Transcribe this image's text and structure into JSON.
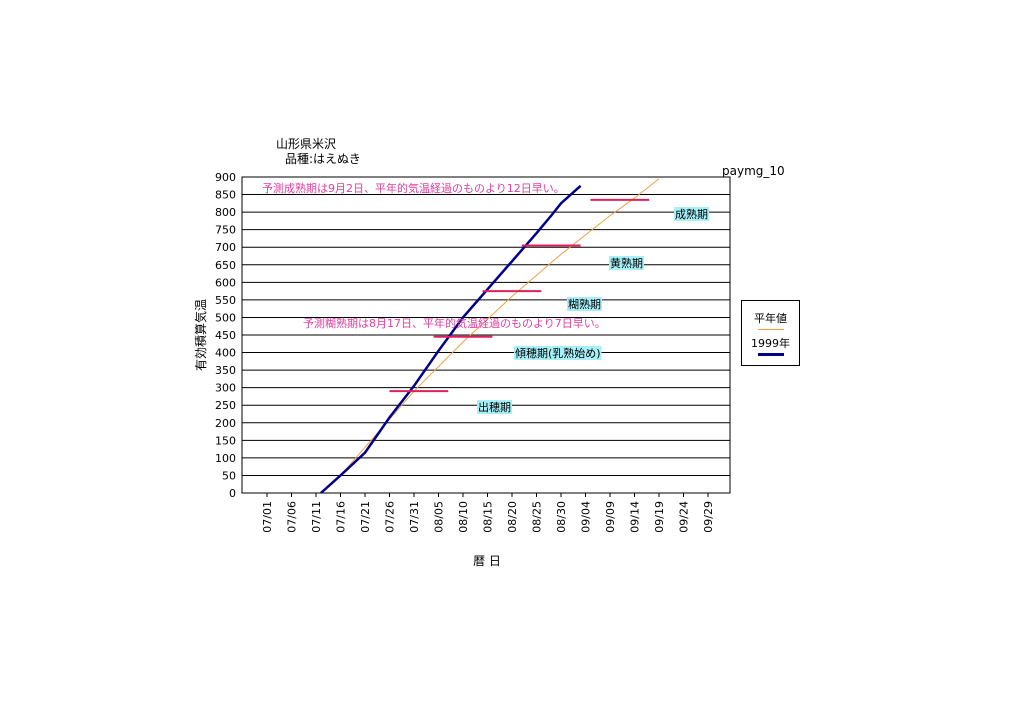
{
  "header": {
    "title": "山形県米沢",
    "subtitle": "品種:はえぬき",
    "code": "paymg_10"
  },
  "chart_data": {
    "type": "line",
    "ylabel": "有効積算気温",
    "xlabel": "暦 日",
    "ylim": [
      0,
      900
    ],
    "yticks": [
      0,
      50,
      100,
      150,
      200,
      250,
      300,
      350,
      400,
      450,
      500,
      550,
      600,
      650,
      700,
      750,
      800,
      850,
      900
    ],
    "xtick_labels": [
      "07/01",
      "07/06",
      "07/11",
      "07/16",
      "07/21",
      "07/26",
      "07/31",
      "08/05",
      "08/10",
      "08/15",
      "08/20",
      "08/25",
      "08/30",
      "09/04",
      "09/09",
      "09/14",
      "09/19",
      "09/24",
      "09/29"
    ],
    "grid": "horizontal",
    "legend_position": "right",
    "series": [
      {
        "name": "平年値",
        "color": "#f0a040",
        "x": [
          11,
          15,
          20,
          30,
          40,
          50,
          60,
          70,
          75,
          80
        ],
        "y": [
          0,
          50,
          130,
          290,
          430,
          560,
          680,
          790,
          840,
          895
        ]
      },
      {
        "name": "1999年",
        "color": "#00008b",
        "x": [
          11,
          15,
          20,
          25,
          30,
          35,
          40,
          45,
          50,
          55,
          58,
          60,
          64
        ],
        "y": [
          0,
          50,
          115,
          215,
          305,
          405,
          500,
          580,
          660,
          740,
          790,
          825,
          875
        ]
      }
    ],
    "stage_lines": [
      {
        "y": 290,
        "x1": 25,
        "x2": 37
      },
      {
        "y": 445,
        "x1": 34,
        "x2": 46
      },
      {
        "y": 575,
        "x1": 44,
        "x2": 56
      },
      {
        "y": 705,
        "x1": 52,
        "x2": 64
      },
      {
        "y": 835,
        "x1": 66,
        "x2": 78
      }
    ],
    "stage_labels": [
      "出穂期",
      "傾穂期(乳熟始め)",
      "糊熟期",
      "黄熟期",
      "成熟期"
    ],
    "annotations": [
      "予測成熟期は9月2日、平年的気温経過のものより12日早い。",
      "予測糊熟期は8月17日、平年的気温経過のものより7日早い。"
    ]
  },
  "colors": {
    "stage_line": "#e0205a",
    "stage_label_bg": "#a8f0f8",
    "annotation": "#e040a0"
  }
}
